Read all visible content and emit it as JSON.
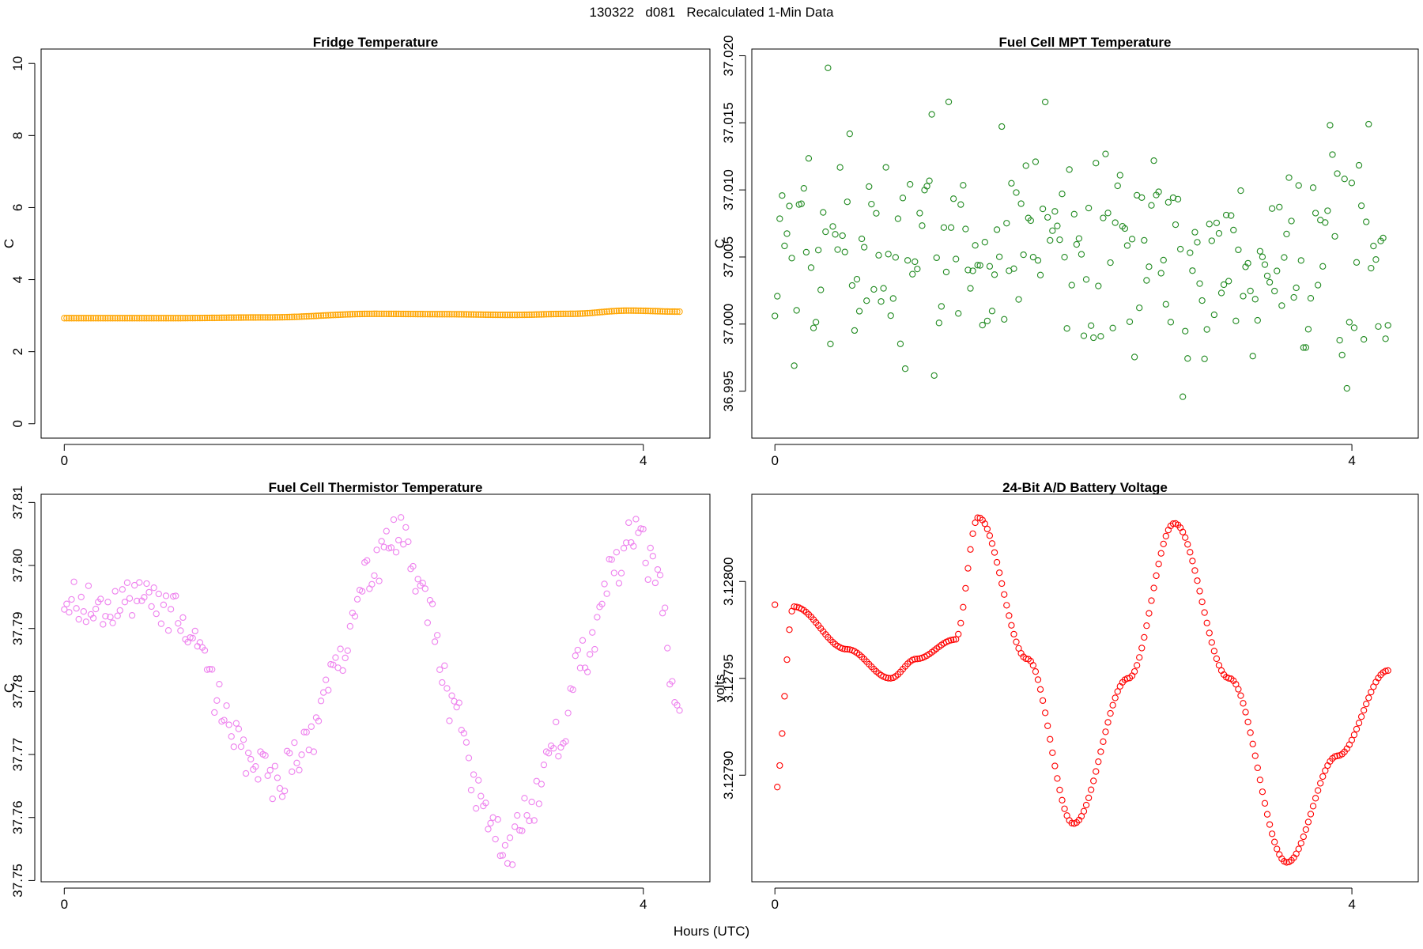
{
  "header": {
    "title": "130322   d081   Recalculated 1-Min Data"
  },
  "footer": {
    "x_axis_label": "Hours (UTC)"
  },
  "chart_data": [
    {
      "id": "fridge",
      "type": "scatter",
      "title": "Fridge Temperature",
      "ylabel": "C",
      "xlabel": "Hours (UTC)",
      "color": "#FFA500",
      "xlim": [
        -0.16,
        4.46
      ],
      "ylim": [
        -0.4,
        10.4
      ],
      "xticks": [
        0,
        4
      ],
      "yticks": [
        0,
        2,
        4,
        6,
        8,
        10
      ],
      "n_points": 255,
      "x_range": [
        0,
        4.25
      ],
      "model": {
        "kind": "flat",
        "baseline": 2.94,
        "knots": [
          [
            0,
            2.93
          ],
          [
            0.4,
            2.93
          ],
          [
            0.75,
            2.93
          ],
          [
            1.4,
            2.95
          ],
          [
            2.15,
            3.05
          ],
          [
            2.6,
            3.04
          ],
          [
            3.1,
            3.02
          ],
          [
            3.5,
            3.05
          ],
          [
            3.9,
            3.14
          ],
          [
            4.25,
            3.11
          ]
        ]
      }
    },
    {
      "id": "fuel-cell-mpt",
      "type": "scatter",
      "title": "Fuel Cell MPT Temperature",
      "ylabel": "C",
      "xlabel": "Hours (UTC)",
      "color": "#228B22",
      "xlim": [
        -0.16,
        4.46
      ],
      "ylim": [
        36.9915,
        37.0205
      ],
      "xticks": [
        0,
        4
      ],
      "yticks": [
        "36.995",
        "37.000",
        "37.005",
        "37.010",
        "37.015",
        "37.020"
      ],
      "n_points": 255,
      "x_range": [
        0,
        4.25
      ],
      "model": {
        "kind": "noise",
        "mean": 37.0055,
        "spread": 0.0045,
        "seed": 81
      }
    },
    {
      "id": "fuel-cell-thermistor",
      "type": "scatter",
      "title": "Fuel Cell Thermistor Temperature",
      "ylabel": "C",
      "xlabel": "Hours (UTC)",
      "color": "#EE82EE",
      "xlim": [
        -0.16,
        4.46
      ],
      "ylim": [
        37.7498,
        37.8113
      ],
      "xticks": [
        0,
        4
      ],
      "yticks": [
        "37.75",
        "37.76",
        "37.77",
        "37.78",
        "37.79",
        "37.80",
        "37.81"
      ],
      "n_points": 255,
      "x_range": [
        0,
        4.25
      ],
      "model": {
        "kind": "curve_noise",
        "seed": 322,
        "jitter": 0.0035,
        "knots": [
          [
            0,
            37.794
          ],
          [
            0.6,
            37.794
          ],
          [
            0.9,
            37.791
          ],
          [
            1.1,
            37.777
          ],
          [
            1.3,
            37.768
          ],
          [
            1.45,
            37.766
          ],
          [
            1.7,
            37.772
          ],
          [
            1.9,
            37.784
          ],
          [
            2.1,
            37.798
          ],
          [
            2.3,
            37.805
          ],
          [
            2.5,
            37.794
          ],
          [
            2.7,
            37.776
          ],
          [
            2.9,
            37.762
          ],
          [
            3.05,
            37.754
          ],
          [
            3.2,
            37.76
          ],
          [
            3.4,
            37.772
          ],
          [
            3.6,
            37.786
          ],
          [
            3.8,
            37.8
          ],
          [
            3.95,
            37.806
          ],
          [
            4.1,
            37.797
          ],
          [
            4.25,
            37.774
          ]
        ]
      }
    },
    {
      "id": "battery-voltage",
      "type": "scatter",
      "title": "24-Bit A/D Battery Voltage",
      "ylabel": "volts",
      "xlabel": "Hours (UTC)",
      "color": "#FF0000",
      "xlim": [
        -0.16,
        4.46
      ],
      "ylim": [
        3.127845,
        3.128045
      ],
      "xticks": [
        0,
        4
      ],
      "yticks": [
        "3.12790",
        "3.12795",
        "3.12800"
      ],
      "n_points": 255,
      "x_range": [
        0,
        4.25
      ],
      "model": {
        "kind": "curve",
        "smooth": true,
        "knots": [
          [
            0,
            3.12789
          ],
          [
            0.13,
            3.127987
          ],
          [
            0.5,
            3.127965
          ],
          [
            0.8,
            3.12795
          ],
          [
            0.98,
            3.12796
          ],
          [
            1.25,
            3.12797
          ],
          [
            1.41,
            3.128033
          ],
          [
            1.75,
            3.12796
          ],
          [
            2.07,
            3.127875
          ],
          [
            2.45,
            3.12795
          ],
          [
            2.77,
            3.12803
          ],
          [
            3.15,
            3.12795
          ],
          [
            3.55,
            3.127855
          ],
          [
            3.9,
            3.12791
          ],
          [
            4.25,
            3.127954
          ]
        ]
      }
    }
  ]
}
